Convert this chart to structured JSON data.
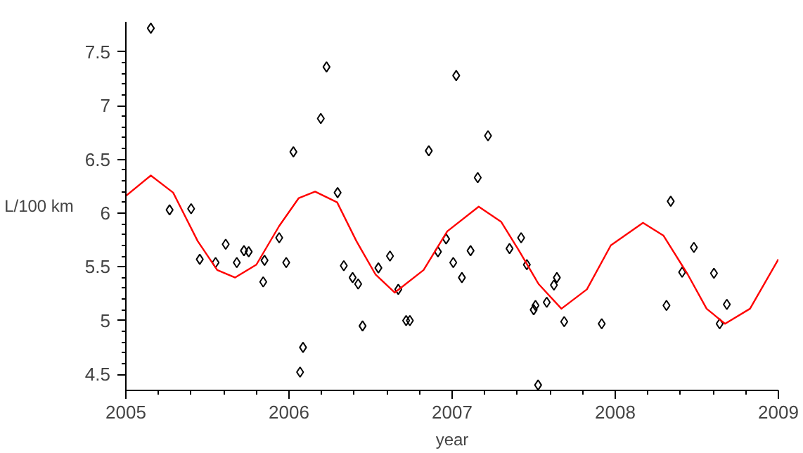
{
  "chart_data": {
    "type": "scatter",
    "xlabel": "year",
    "ylabel": "L/100 km",
    "xlim": [
      2005,
      2009
    ],
    "ylim": [
      4.35,
      7.78
    ],
    "xticks": [
      2005,
      2006,
      2007,
      2008,
      2009
    ],
    "yticks": [
      4.5,
      5,
      5.5,
      6,
      6.5,
      7,
      7.5
    ],
    "grid": false,
    "series": [
      {
        "marker": "diamond",
        "color": "#000000",
        "x": [
          2005.153,
          2005.268,
          2005.4,
          2005.453,
          2005.55,
          2005.612,
          2005.68,
          2005.724,
          2005.753,
          2005.85,
          2005.842,
          2005.94,
          2005.983,
          2006.027,
          2006.068,
          2006.086,
          2006.195,
          2006.23,
          2006.298,
          2006.336,
          2006.39,
          2006.424,
          2006.451,
          2006.548,
          2006.619,
          2006.67,
          2006.718,
          2006.741,
          2006.857,
          2006.913,
          2006.963,
          2007.007,
          2007.025,
          2007.06,
          2007.113,
          2007.157,
          2007.22,
          2007.352,
          2007.423,
          2007.458,
          2007.511,
          2007.5,
          2007.527,
          2007.58,
          2007.624,
          2007.642,
          2007.687,
          2007.917,
          2008.314,
          2008.34,
          2008.41,
          2008.482,
          2008.605,
          2008.64,
          2008.684
        ],
        "values": [
          7.72,
          6.03,
          6.04,
          5.57,
          5.54,
          5.71,
          5.54,
          5.65,
          5.64,
          5.56,
          5.36,
          5.77,
          5.54,
          6.57,
          4.52,
          4.75,
          6.88,
          7.36,
          6.19,
          5.51,
          5.4,
          5.34,
          4.95,
          5.49,
          5.6,
          5.29,
          5.0,
          5.0,
          6.58,
          5.64,
          5.76,
          5.54,
          7.28,
          5.4,
          5.65,
          6.33,
          6.72,
          5.67,
          5.77,
          5.52,
          5.14,
          5.1,
          4.4,
          5.17,
          5.33,
          5.4,
          4.99,
          4.97,
          5.14,
          6.11,
          5.45,
          5.68,
          5.44,
          4.97,
          5.15
        ]
      },
      {
        "type": "line",
        "line_style": "solid",
        "color": "#ff0000",
        "x": [
          2005.0,
          2005.153,
          2005.29,
          2005.44,
          2005.56,
          2005.67,
          2005.8,
          2005.94,
          2006.06,
          2006.16,
          2006.295,
          2006.413,
          2006.53,
          2006.648,
          2006.825,
          2006.97,
          2007.163,
          2007.3,
          2007.41,
          2007.53,
          2007.67,
          2007.826,
          2007.973,
          2008.17,
          2008.296,
          2008.444,
          2008.56,
          2008.673,
          2008.826,
          2009.0
        ],
        "values": [
          6.16,
          6.35,
          6.19,
          5.74,
          5.47,
          5.4,
          5.52,
          5.88,
          6.14,
          6.2,
          6.1,
          5.74,
          5.43,
          5.26,
          5.47,
          5.83,
          6.06,
          5.92,
          5.65,
          5.34,
          5.11,
          5.29,
          5.7,
          5.91,
          5.79,
          5.43,
          5.11,
          4.97,
          5.11,
          5.57
        ]
      }
    ]
  }
}
